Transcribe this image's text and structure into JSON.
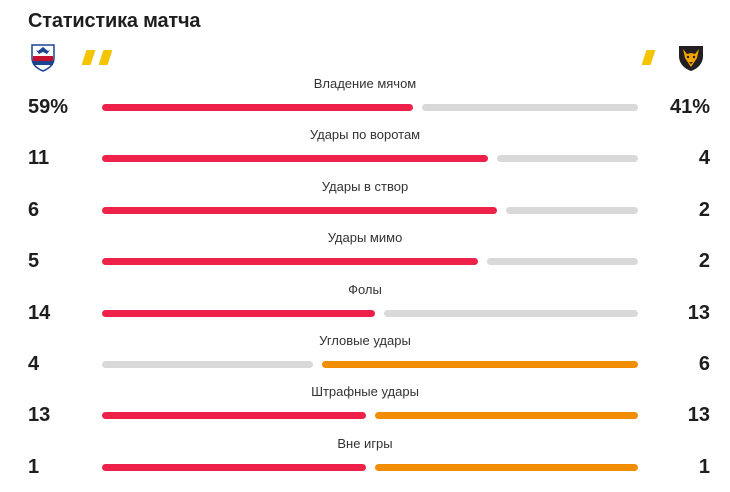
{
  "header": {
    "title": "Статистика матча"
  },
  "teams": {
    "home": {
      "crest_icon": "crystal-palace-eagle-crest",
      "cards": 2,
      "card_color": "#f5c400"
    },
    "away": {
      "crest_icon": "wolves-wolf-head-crest",
      "cards": 1,
      "card_color": "#f5c400"
    }
  },
  "colors": {
    "highlight_home": "#ee2149",
    "highlight_away": "#f28c00",
    "track": "#d9d9d9"
  },
  "stats": [
    {
      "label": "Владение мячом",
      "home": "59%",
      "away": "41%",
      "home_value": 59,
      "away_value": 41,
      "home_color": "#ee2149",
      "away_color": "#d9d9d9"
    },
    {
      "label": "Удары по воротам",
      "home": "11",
      "away": "4",
      "home_value": 11,
      "away_value": 4,
      "home_color": "#ee2149",
      "away_color": "#d9d9d9"
    },
    {
      "label": "Удары в створ",
      "home": "6",
      "away": "2",
      "home_value": 6,
      "away_value": 2,
      "home_color": "#ee2149",
      "away_color": "#d9d9d9"
    },
    {
      "label": "Удары мимо",
      "home": "5",
      "away": "2",
      "home_value": 5,
      "away_value": 2,
      "home_color": "#ee2149",
      "away_color": "#d9d9d9"
    },
    {
      "label": "Фолы",
      "home": "14",
      "away": "13",
      "home_value": 14,
      "away_value": 13,
      "home_color": "#ee2149",
      "away_color": "#d9d9d9"
    },
    {
      "label": "Угловые удары",
      "home": "4",
      "away": "6",
      "home_value": 4,
      "away_value": 6,
      "home_color": "#d9d9d9",
      "away_color": "#f28c00"
    },
    {
      "label": "Штрафные удары",
      "home": "13",
      "away": "13",
      "home_value": 13,
      "away_value": 13,
      "home_color": "#ee2149",
      "away_color": "#f28c00"
    },
    {
      "label": "Вне игры",
      "home": "1",
      "away": "1",
      "home_value": 1,
      "away_value": 1,
      "home_color": "#ee2149",
      "away_color": "#f28c00"
    }
  ]
}
